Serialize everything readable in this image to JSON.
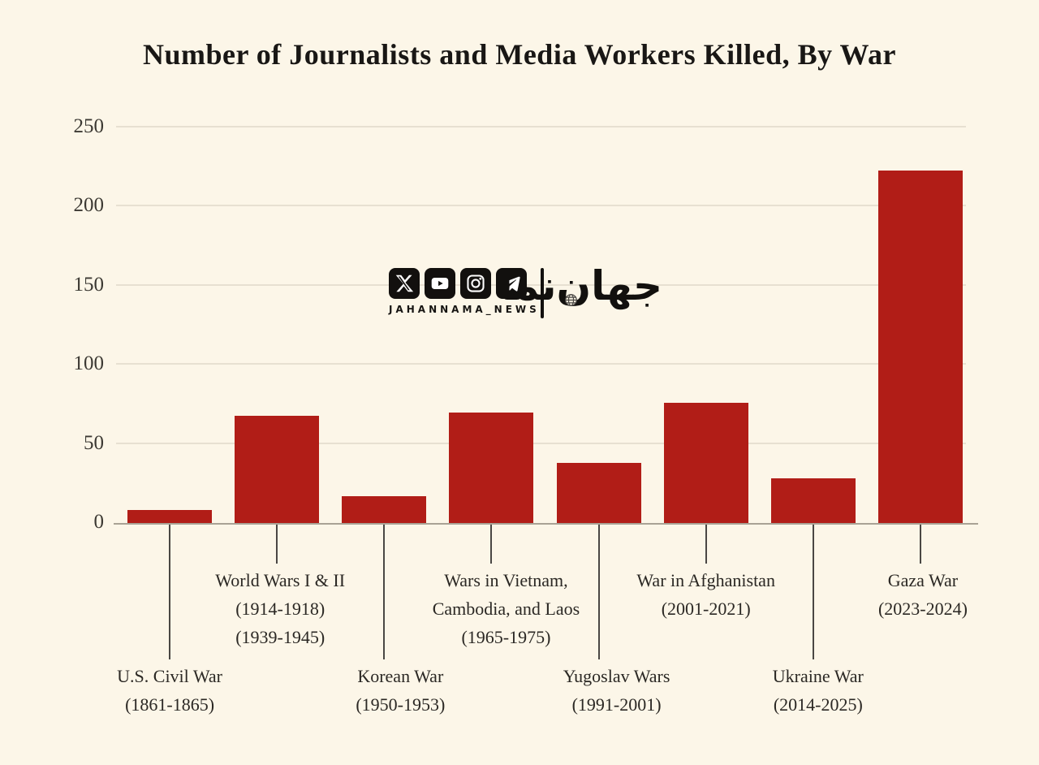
{
  "title": "Number of Journalists and Media Workers Killed, By War",
  "watermark": {
    "handle": "JAHANNAMA_NEWS",
    "logo_text": "جهان‌نما",
    "icons": [
      "x-icon",
      "youtube-icon",
      "instagram-icon",
      "telegram-icon"
    ]
  },
  "colors": {
    "background": "#fcf6e8",
    "bar": "#b11d17",
    "gridline": "#e7e0d1",
    "axis": "#a9a295",
    "leader_line": "#4a4744",
    "text": "#2b2824"
  },
  "chart_data": {
    "type": "bar",
    "title": "Number of Journalists and Media Workers Killed, By War",
    "xlabel": "",
    "ylabel": "",
    "ylim": [
      0,
      250
    ],
    "yticks": [
      0,
      50,
      100,
      150,
      200,
      250
    ],
    "grid": true,
    "legend": false,
    "bar_color": "#b11d17",
    "categories": [
      {
        "name": "U.S. Civil War",
        "label_lines": [
          "U.S. Civil War",
          "(1861-1865)"
        ],
        "label_row": "lower"
      },
      {
        "name": "World Wars I & II",
        "label_lines": [
          "World Wars I & II",
          "(1914-1918)",
          "(1939-1945)"
        ],
        "label_row": "upper"
      },
      {
        "name": "Korean War",
        "label_lines": [
          "Korean War",
          "(1950-1953)"
        ],
        "label_row": "lower"
      },
      {
        "name": "Wars in Vietnam, Cambodia, and Laos",
        "label_lines": [
          "Wars in Vietnam,",
          "Cambodia, and Laos",
          "(1965-1975)"
        ],
        "label_row": "upper"
      },
      {
        "name": "Yugoslav Wars",
        "label_lines": [
          "Yugoslav Wars",
          "(1991-2001)"
        ],
        "label_row": "lower"
      },
      {
        "name": "War in Afghanistan",
        "label_lines": [
          "War in Afghanistan",
          "(2001-2021)"
        ],
        "label_row": "upper"
      },
      {
        "name": "Ukraine War",
        "label_lines": [
          "Ukraine War",
          "(2014-2025)"
        ],
        "label_row": "lower"
      },
      {
        "name": "Gaza War",
        "label_lines": [
          "Gaza War",
          "(2023-2024)"
        ],
        "label_row": "upper"
      }
    ],
    "values": [
      8,
      68,
      17,
      70,
      38,
      76,
      28,
      223
    ]
  }
}
